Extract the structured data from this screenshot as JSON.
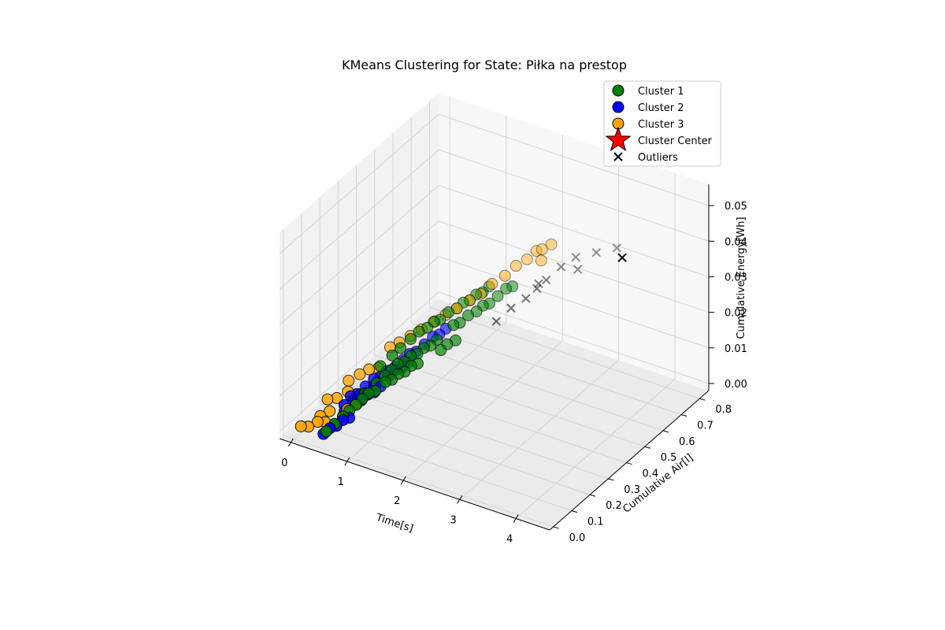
{
  "chart_data": {
    "type": "scatter",
    "title": "KMeans Clustering for State: Piłka na prestop",
    "xlabel": "Time[s]",
    "ylabel": "Cumulative Air[l]",
    "zlabel": "Cumulative Energy[Wh]",
    "xlim": [
      -0.2,
      4.6
    ],
    "ylim": [
      -0.02,
      0.85
    ],
    "zlim": [
      -0.002,
      0.056
    ],
    "xticks": [
      "0",
      "1",
      "2",
      "3",
      "4"
    ],
    "yticks": [
      "0.0",
      "0.1",
      "0.2",
      "0.3",
      "0.4",
      "0.5",
      "0.6",
      "0.7",
      "0.8"
    ],
    "zticks": [
      "0.00",
      "0.01",
      "0.02",
      "0.03",
      "0.04",
      "0.05"
    ],
    "grid": true,
    "projection": "3d",
    "legend_position": "top-right",
    "legend": [
      {
        "label": "Cluster 1",
        "color": "#008000",
        "marker": "circle"
      },
      {
        "label": "Cluster 2",
        "color": "#0000ff",
        "marker": "circle"
      },
      {
        "label": "Cluster 3",
        "color": "#ffa500",
        "marker": "circle"
      },
      {
        "label": "Cluster Center",
        "color": "#ff0000",
        "marker": "star"
      },
      {
        "label": "Outliers",
        "color": "#000000",
        "marker": "x"
      }
    ],
    "series": [
      {
        "name": "Cluster 1",
        "color": "#008000",
        "marker": "circle",
        "points": [
          [
            0.5,
            0.02,
            0.002
          ],
          [
            0.55,
            0.05,
            0.003
          ],
          [
            0.6,
            0.08,
            0.004
          ],
          [
            0.65,
            0.1,
            0.005
          ],
          [
            0.7,
            0.12,
            0.006
          ],
          [
            0.75,
            0.14,
            0.007
          ],
          [
            0.8,
            0.16,
            0.008
          ],
          [
            0.85,
            0.18,
            0.008
          ],
          [
            0.6,
            0.2,
            0.005
          ],
          [
            0.65,
            0.25,
            0.006
          ],
          [
            0.7,
            0.28,
            0.007
          ],
          [
            0.75,
            0.3,
            0.008
          ],
          [
            0.8,
            0.32,
            0.009
          ],
          [
            0.85,
            0.34,
            0.009
          ],
          [
            0.9,
            0.36,
            0.01
          ],
          [
            0.95,
            0.38,
            0.01
          ],
          [
            1.0,
            0.4,
            0.011
          ],
          [
            1.05,
            0.42,
            0.011
          ],
          [
            1.1,
            0.44,
            0.012
          ],
          [
            0.9,
            0.22,
            0.009
          ],
          [
            0.95,
            0.24,
            0.009
          ],
          [
            1.0,
            0.26,
            0.01
          ],
          [
            1.05,
            0.28,
            0.01
          ],
          [
            1.1,
            0.3,
            0.011
          ],
          [
            1.15,
            0.32,
            0.011
          ],
          [
            0.55,
            0.3,
            0.008
          ],
          [
            0.6,
            0.35,
            0.009
          ],
          [
            0.65,
            0.38,
            0.01
          ],
          [
            0.7,
            0.42,
            0.011
          ],
          [
            0.75,
            0.45,
            0.012
          ],
          [
            0.8,
            0.48,
            0.012
          ],
          [
            0.85,
            0.5,
            0.013
          ],
          [
            0.9,
            0.52,
            0.013
          ],
          [
            0.95,
            0.55,
            0.014
          ],
          [
            1.0,
            0.58,
            0.014
          ],
          [
            1.05,
            0.6,
            0.015
          ],
          [
            1.1,
            0.62,
            0.015
          ],
          [
            1.15,
            0.64,
            0.016
          ],
          [
            1.2,
            0.66,
            0.016
          ],
          [
            1.25,
            0.68,
            0.017
          ],
          [
            1.2,
            0.5,
            0.014
          ],
          [
            1.25,
            0.52,
            0.014
          ],
          [
            1.3,
            0.55,
            0.015
          ],
          [
            1.35,
            0.58,
            0.015
          ],
          [
            1.3,
            0.4,
            0.012
          ],
          [
            1.35,
            0.42,
            0.013
          ],
          [
            1.4,
            0.45,
            0.013
          ],
          [
            1.4,
            0.6,
            0.016
          ],
          [
            1.45,
            0.62,
            0.016
          ],
          [
            1.5,
            0.65,
            0.017
          ],
          [
            1.55,
            0.68,
            0.018
          ],
          [
            1.6,
            0.7,
            0.018
          ]
        ]
      },
      {
        "name": "Cluster 2",
        "color": "#0000ff",
        "marker": "circle",
        "points": [
          [
            0.45,
            0.02,
            0.001
          ],
          [
            0.5,
            0.04,
            0.002
          ],
          [
            0.55,
            0.06,
            0.002
          ],
          [
            0.6,
            0.08,
            0.003
          ],
          [
            0.65,
            0.1,
            0.003
          ],
          [
            0.5,
            0.12,
            0.003
          ],
          [
            0.55,
            0.15,
            0.004
          ],
          [
            0.6,
            0.18,
            0.004
          ],
          [
            0.65,
            0.2,
            0.005
          ],
          [
            0.7,
            0.22,
            0.005
          ],
          [
            0.75,
            0.24,
            0.006
          ],
          [
            0.4,
            0.15,
            0.003
          ],
          [
            0.45,
            0.18,
            0.003
          ],
          [
            0.5,
            0.2,
            0.004
          ],
          [
            0.55,
            0.22,
            0.004
          ],
          [
            0.6,
            0.25,
            0.005
          ],
          [
            0.35,
            0.2,
            0.003
          ],
          [
            0.4,
            0.22,
            0.003
          ],
          [
            0.45,
            0.25,
            0.004
          ],
          [
            0.5,
            0.28,
            0.005
          ],
          [
            0.55,
            0.3,
            0.005
          ],
          [
            0.6,
            0.32,
            0.006
          ],
          [
            0.65,
            0.35,
            0.006
          ],
          [
            0.7,
            0.38,
            0.007
          ],
          [
            0.75,
            0.4,
            0.008
          ],
          [
            0.8,
            0.42,
            0.008
          ],
          [
            0.85,
            0.45,
            0.009
          ],
          [
            0.9,
            0.48,
            0.01
          ],
          [
            0.95,
            0.5,
            0.01
          ],
          [
            1.0,
            0.52,
            0.011
          ],
          [
            0.7,
            0.3,
            0.006
          ],
          [
            0.75,
            0.32,
            0.007
          ],
          [
            0.8,
            0.34,
            0.007
          ],
          [
            0.85,
            0.36,
            0.008
          ]
        ]
      },
      {
        "name": "Cluster 3",
        "color": "#ffa500",
        "marker": "circle",
        "points": [
          [
            0.05,
            0.02,
            0.001
          ],
          [
            0.15,
            0.03,
            0.001
          ],
          [
            0.25,
            0.05,
            0.002
          ],
          [
            0.35,
            0.06,
            0.002
          ],
          [
            0.1,
            0.15,
            0.003
          ],
          [
            0.2,
            0.17,
            0.003
          ],
          [
            0.3,
            0.2,
            0.004
          ],
          [
            0.15,
            0.25,
            0.004
          ],
          [
            0.25,
            0.28,
            0.005
          ],
          [
            0.35,
            0.3,
            0.006
          ],
          [
            0.45,
            0.32,
            0.006
          ],
          [
            0.4,
            0.4,
            0.008
          ],
          [
            0.5,
            0.42,
            0.009
          ],
          [
            0.6,
            0.45,
            0.01
          ],
          [
            0.7,
            0.48,
            0.011
          ],
          [
            0.8,
            0.52,
            0.012
          ],
          [
            0.9,
            0.55,
            0.013
          ],
          [
            1.0,
            0.58,
            0.014
          ],
          [
            1.1,
            0.62,
            0.015
          ],
          [
            1.2,
            0.65,
            0.016
          ],
          [
            1.3,
            0.68,
            0.018
          ],
          [
            1.4,
            0.72,
            0.019
          ],
          [
            1.5,
            0.75,
            0.021
          ],
          [
            1.6,
            0.78,
            0.022
          ],
          [
            1.7,
            0.8,
            0.024
          ],
          [
            1.8,
            0.8,
            0.025
          ],
          [
            1.9,
            0.82,
            0.026
          ],
          [
            1.85,
            0.78,
            0.023
          ],
          [
            0.55,
            0.12,
            0.004
          ],
          [
            0.65,
            0.14,
            0.005
          ],
          [
            0.3,
            0.1,
            0.003
          ],
          [
            0.2,
            0.08,
            0.002
          ]
        ]
      },
      {
        "name": "Outliers",
        "color": "#000000",
        "marker": "x",
        "points": [
          [
            1.9,
            0.6,
            0.018
          ],
          [
            2.0,
            0.65,
            0.019
          ],
          [
            2.1,
            0.68,
            0.021
          ],
          [
            2.2,
            0.7,
            0.023
          ],
          [
            2.3,
            0.75,
            0.025
          ],
          [
            2.4,
            0.8,
            0.026
          ],
          [
            2.5,
            0.78,
            0.024
          ],
          [
            2.7,
            0.82,
            0.028
          ],
          [
            3.0,
            0.84,
            0.03
          ],
          [
            1.8,
            0.55,
            0.016
          ],
          [
            2.0,
            0.72,
            0.02
          ],
          [
            4.2,
            0.5,
            0.049
          ]
        ]
      }
    ]
  }
}
